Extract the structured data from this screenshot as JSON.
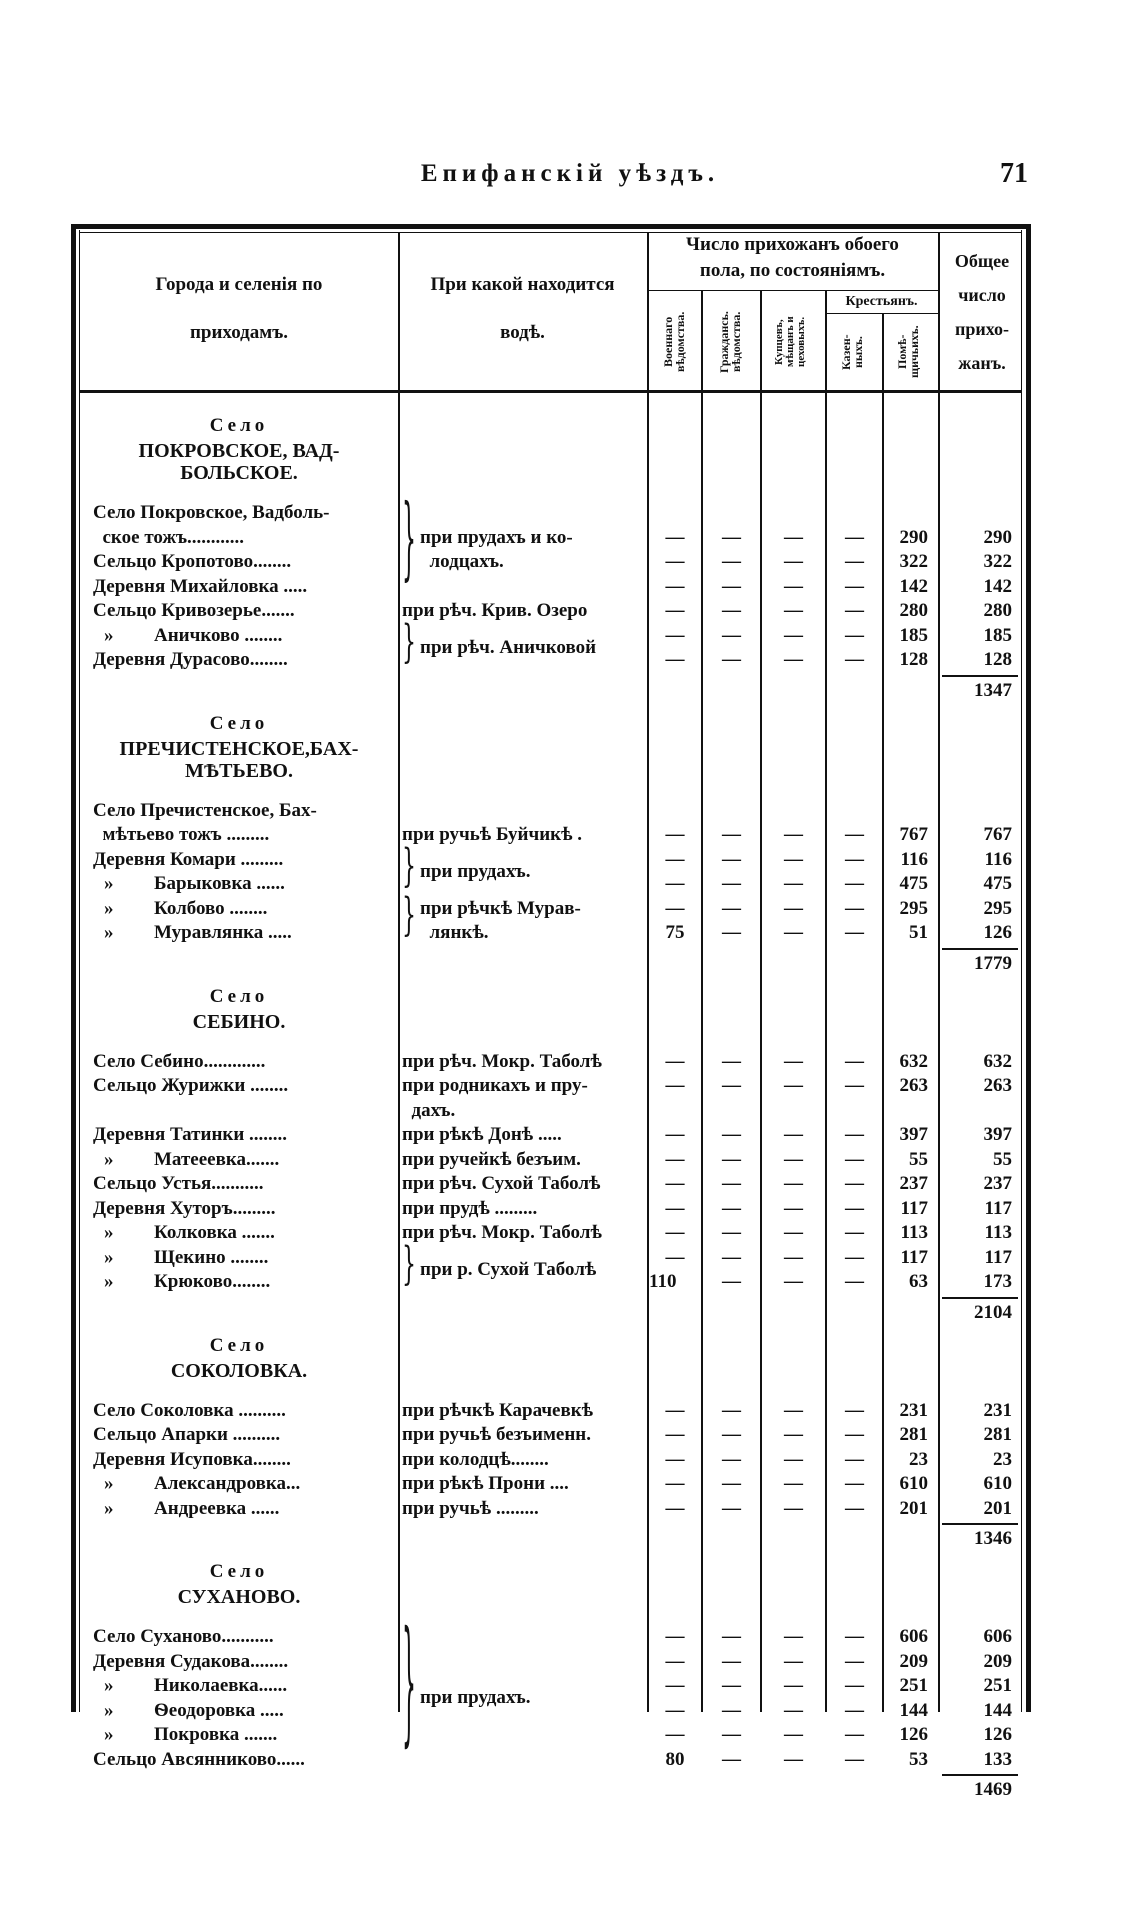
{
  "header": {
    "title": "Епифанскій уѣздъ.",
    "page_number": "71"
  },
  "table_head": {
    "col_places": [
      "Города и селенія по",
      "приходамъ."
    ],
    "col_water": [
      "При какой находится",
      "водѣ."
    ],
    "group_parish": [
      "Число прихожанъ обоего",
      "пола, по состояніямъ."
    ],
    "col_military": [
      "Военнаго",
      "вѣдомства."
    ],
    "col_civil": [
      "Граждансь.",
      "вѣдомства."
    ],
    "col_merchants": [
      "Купцевъ,",
      "мѣщанъ и",
      "цеховыхъ."
    ],
    "group_peasants": "Крестьянъ.",
    "col_state": [
      "Казен-",
      "ныхъ."
    ],
    "col_landlord": [
      "Помѣ-",
      "щичьихъ."
    ],
    "col_total": [
      "Общее",
      "число",
      "прихо-",
      "жанъ."
    ]
  },
  "sections": [
    {
      "label": "Село",
      "name": [
        "ПОКРОВСКОЕ, ВАД-",
        "БОЛЬСКОЕ."
      ],
      "total": "1347",
      "rows": [
        {
          "name": [
            "Село Покровское, Вадболь-",
            "  ское тожъ............"
          ],
          "values": [
            "—",
            "—",
            "—",
            "—",
            "290",
            "290"
          ]
        },
        {
          "name": [
            "Сельцо Кропотово........"
          ],
          "values": [
            "—",
            "—",
            "—",
            "—",
            "322",
            "322"
          ]
        },
        {
          "name": [
            "Деревня Михайловка ....."
          ],
          "values": [
            "—",
            "—",
            "—",
            "—",
            "142",
            "142"
          ]
        },
        {
          "name": [
            "Сельцо Кривозерье......."
          ],
          "water": [
            "при рѣч. Крив. Озеро"
          ],
          "values": [
            "—",
            "—",
            "—",
            "—",
            "280",
            "280"
          ]
        },
        {
          "ditto": "»",
          "name": [
            "Аничково ........"
          ],
          "values": [
            "—",
            "—",
            "—",
            "—",
            "185",
            "185"
          ]
        },
        {
          "name": [
            "Деревня Дурасово........"
          ],
          "values": [
            "—",
            "—",
            "—",
            "—",
            "128",
            "128"
          ]
        }
      ],
      "water_groups": [
        {
          "rows": [
            0,
            2
          ],
          "text": [
            "при прудахъ и ко-",
            "  лодцахъ."
          ]
        },
        {
          "rows": [
            4,
            5
          ],
          "text": [
            "при рѣч. Аничковой"
          ]
        }
      ]
    },
    {
      "label": "Село",
      "name": [
        "ПРЕЧИСТЕНСКОЕ,БАХ-",
        "МѢТЬЕВО."
      ],
      "total": "1779",
      "rows": [
        {
          "name": [
            "Село Пречистенское, Бах-",
            "  мѣтьево тожъ ........."
          ],
          "water": [
            "при ручьѣ Буйчикѣ ."
          ],
          "values": [
            "—",
            "—",
            "—",
            "—",
            "767",
            "767"
          ]
        },
        {
          "name": [
            "Деревня Комари ........."
          ],
          "values": [
            "—",
            "—",
            "—",
            "—",
            "116",
            "116"
          ]
        },
        {
          "ditto": "»",
          "name": [
            "Барыковка ......"
          ],
          "values": [
            "—",
            "—",
            "—",
            "—",
            "475",
            "475"
          ]
        },
        {
          "ditto": "»",
          "name": [
            "Колбово ........"
          ],
          "values": [
            "—",
            "—",
            "—",
            "—",
            "295",
            "295"
          ]
        },
        {
          "ditto": "»",
          "name": [
            "Муравлянка ....."
          ],
          "values": [
            "75",
            "—",
            "—",
            "—",
            "51",
            "126"
          ]
        }
      ],
      "water_groups": [
        {
          "rows": [
            1,
            2
          ],
          "text": [
            "при прудахъ."
          ]
        },
        {
          "rows": [
            3,
            4
          ],
          "text": [
            "при рѣчкѣ Мурав-",
            "  лянкѣ."
          ]
        }
      ]
    },
    {
      "label": "Село",
      "name": [
        "СЕБИНО."
      ],
      "total": "2104",
      "rows": [
        {
          "name": [
            "Село Себино............."
          ],
          "water": [
            "при рѣч. Мокр. Таболѣ"
          ],
          "values": [
            "—",
            "—",
            "—",
            "—",
            "632",
            "632"
          ]
        },
        {
          "name": [
            "Сельцо Журижки ........"
          ],
          "water": [
            "при родникахъ и пру-",
            "  дахъ."
          ],
          "values": [
            "—",
            "—",
            "—",
            "—",
            "263",
            "263"
          ]
        },
        {
          "name": [
            "Деревня Татинки ........"
          ],
          "water": [
            "при рѣкѣ Донѣ ....."
          ],
          "values": [
            "—",
            "—",
            "—",
            "—",
            "397",
            "397"
          ]
        },
        {
          "ditto": "»",
          "name": [
            "Матееевка......."
          ],
          "water": [
            "при ручейкѣ безъим."
          ],
          "values": [
            "—",
            "—",
            "—",
            "—",
            "55",
            "55"
          ]
        },
        {
          "name": [
            "Сельцо Устья..........."
          ],
          "water": [
            "при рѣч. Сухой Таболѣ"
          ],
          "values": [
            "—",
            "—",
            "—",
            "—",
            "237",
            "237"
          ]
        },
        {
          "name": [
            "Деревня Хуторъ........."
          ],
          "water": [
            "при прудѣ ........."
          ],
          "values": [
            "—",
            "—",
            "—",
            "—",
            "117",
            "117"
          ]
        },
        {
          "ditto": "»",
          "name": [
            "Колковка ......."
          ],
          "water": [
            "при рѣч. Мокр. Таболѣ"
          ],
          "values": [
            "—",
            "—",
            "—",
            "—",
            "113",
            "113"
          ]
        },
        {
          "ditto": "»",
          "name": [
            "Щекино ........"
          ],
          "values": [
            "—",
            "—",
            "—",
            "—",
            "117",
            "117"
          ]
        },
        {
          "ditto": "»",
          "name": [
            "Крюково........"
          ],
          "values": [
            "110",
            "—",
            "—",
            "—",
            "63",
            "173"
          ]
        }
      ],
      "water_groups": [
        {
          "rows": [
            7,
            8
          ],
          "text": [
            "при р. Сухой Таболѣ"
          ]
        }
      ]
    },
    {
      "label": "Село",
      "name": [
        "СОКОЛОВКА."
      ],
      "total": "1346",
      "rows": [
        {
          "name": [
            "Село Соколовка .........."
          ],
          "water": [
            "при рѣчкѣ Карачевкѣ"
          ],
          "values": [
            "—",
            "—",
            "—",
            "—",
            "231",
            "231"
          ]
        },
        {
          "name": [
            "Сельцо Апарки .........."
          ],
          "water": [
            "при ручьѣ безъименн."
          ],
          "values": [
            "—",
            "—",
            "—",
            "—",
            "281",
            "281"
          ]
        },
        {
          "name": [
            "Деревня Исуповка........"
          ],
          "water": [
            "при колодцѣ........"
          ],
          "values": [
            "—",
            "—",
            "—",
            "—",
            "23",
            "23"
          ]
        },
        {
          "ditto": "»",
          "name": [
            "Александровка..."
          ],
          "water": [
            "при рѣкѣ Прони ...."
          ],
          "values": [
            "—",
            "—",
            "—",
            "—",
            "610",
            "610"
          ]
        },
        {
          "ditto": "»",
          "name": [
            "Андреевка ......"
          ],
          "water": [
            "при ручьѣ ........."
          ],
          "values": [
            "—",
            "—",
            "—",
            "—",
            "201",
            "201"
          ]
        }
      ],
      "water_groups": []
    },
    {
      "label": "Село",
      "name": [
        "СУХАНОВО."
      ],
      "total": "1469",
      "rows": [
        {
          "name": [
            "Село Суханово..........."
          ],
          "values": [
            "—",
            "—",
            "—",
            "—",
            "606",
            "606"
          ]
        },
        {
          "name": [
            "Деревня Судакова........"
          ],
          "values": [
            "—",
            "—",
            "—",
            "—",
            "209",
            "209"
          ]
        },
        {
          "ditto": "»",
          "name": [
            "Николаевка......"
          ],
          "values": [
            "—",
            "—",
            "—",
            "—",
            "251",
            "251"
          ]
        },
        {
          "ditto": "»",
          "name": [
            "Ѳеодоровка ....."
          ],
          "values": [
            "—",
            "—",
            "—",
            "—",
            "144",
            "144"
          ]
        },
        {
          "ditto": "»",
          "name": [
            "Покровка ......."
          ],
          "values": [
            "—",
            "—",
            "—",
            "—",
            "126",
            "126"
          ]
        },
        {
          "name": [
            "Сельцо Авсянниково......"
          ],
          "values": [
            "80",
            "—",
            "—",
            "—",
            "53",
            "133"
          ]
        }
      ],
      "water_groups": [
        {
          "rows": [
            0,
            5
          ],
          "text": [
            "при прудахъ."
          ]
        }
      ]
    }
  ]
}
